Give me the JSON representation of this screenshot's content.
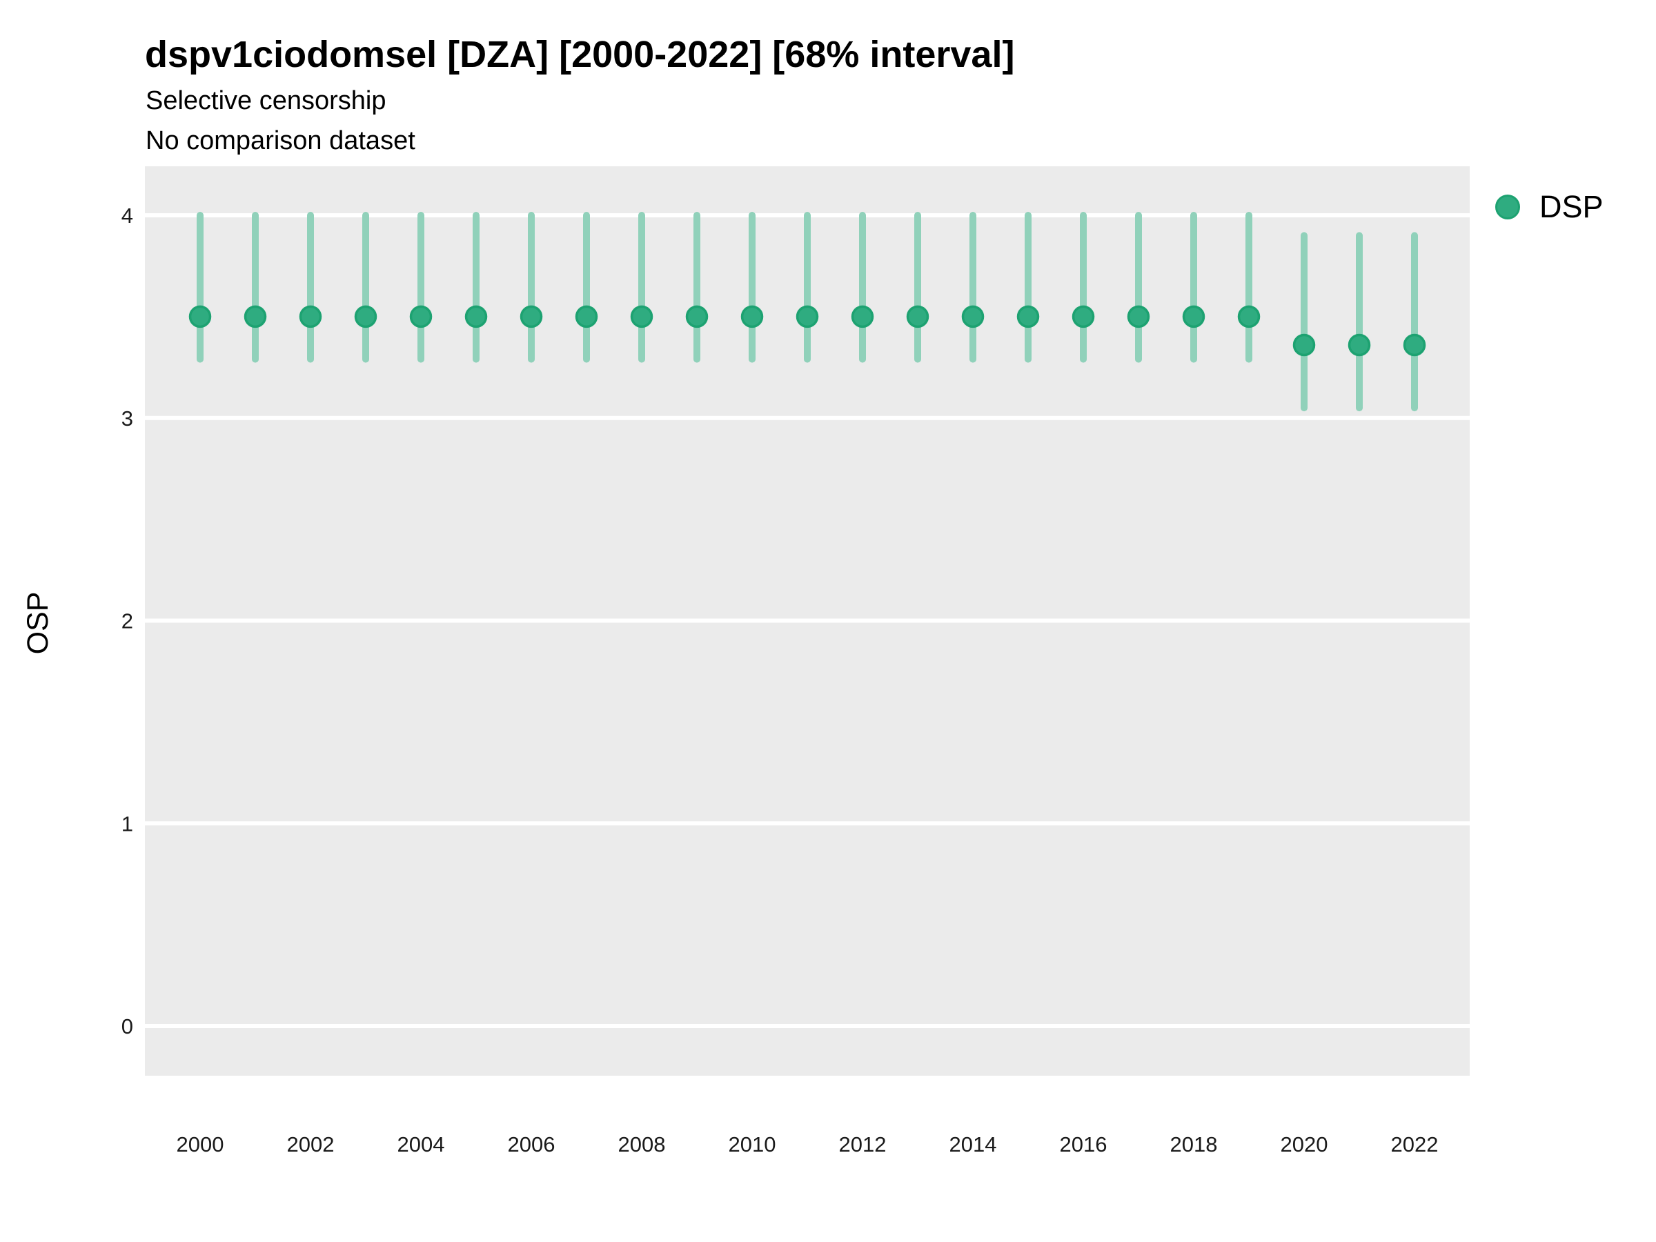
{
  "chart_data": {
    "type": "scatter",
    "subtype": "pointrange",
    "title": "dspv1ciodomsel [DZA] [2000-2022] [68% interval]",
    "subtitle_line1": "Selective censorship",
    "subtitle_line2": "No comparison dataset",
    "interval_label": "68% interval",
    "country_code": "DZA",
    "xlabel": "",
    "ylabel": "OSP",
    "ylim": [
      0,
      4
    ],
    "yticks": [
      0,
      1,
      2,
      3,
      4
    ],
    "xticks": [
      2000,
      2002,
      2004,
      2006,
      2008,
      2010,
      2012,
      2014,
      2016,
      2018,
      2020,
      2022
    ],
    "x_range_padded": [
      1999,
      2023
    ],
    "grid": "major horizontal white lines on gray panel",
    "legend_position": "right",
    "legend": {
      "entries": [
        {
          "label": "DSP",
          "marker": "circle",
          "marker_color": "#2fac80",
          "marker_stroke": "#1da271"
        }
      ]
    },
    "series": [
      {
        "name": "DSP",
        "points": [
          {
            "year": 2000,
            "mid": 3.5,
            "lo": 3.29,
            "hi": 4.0
          },
          {
            "year": 2001,
            "mid": 3.5,
            "lo": 3.29,
            "hi": 4.0
          },
          {
            "year": 2002,
            "mid": 3.5,
            "lo": 3.29,
            "hi": 4.0
          },
          {
            "year": 2003,
            "mid": 3.5,
            "lo": 3.29,
            "hi": 4.0
          },
          {
            "year": 2004,
            "mid": 3.5,
            "lo": 3.29,
            "hi": 4.0
          },
          {
            "year": 2005,
            "mid": 3.5,
            "lo": 3.29,
            "hi": 4.0
          },
          {
            "year": 2006,
            "mid": 3.5,
            "lo": 3.29,
            "hi": 4.0
          },
          {
            "year": 2007,
            "mid": 3.5,
            "lo": 3.29,
            "hi": 4.0
          },
          {
            "year": 2008,
            "mid": 3.5,
            "lo": 3.29,
            "hi": 4.0
          },
          {
            "year": 2009,
            "mid": 3.5,
            "lo": 3.29,
            "hi": 4.0
          },
          {
            "year": 2010,
            "mid": 3.5,
            "lo": 3.29,
            "hi": 4.0
          },
          {
            "year": 2011,
            "mid": 3.5,
            "lo": 3.29,
            "hi": 4.0
          },
          {
            "year": 2012,
            "mid": 3.5,
            "lo": 3.29,
            "hi": 4.0
          },
          {
            "year": 2013,
            "mid": 3.5,
            "lo": 3.29,
            "hi": 4.0
          },
          {
            "year": 2014,
            "mid": 3.5,
            "lo": 3.29,
            "hi": 4.0
          },
          {
            "year": 2015,
            "mid": 3.5,
            "lo": 3.29,
            "hi": 4.0
          },
          {
            "year": 2016,
            "mid": 3.5,
            "lo": 3.29,
            "hi": 4.0
          },
          {
            "year": 2017,
            "mid": 3.5,
            "lo": 3.29,
            "hi": 4.0
          },
          {
            "year": 2018,
            "mid": 3.5,
            "lo": 3.29,
            "hi": 4.0
          },
          {
            "year": 2019,
            "mid": 3.5,
            "lo": 3.29,
            "hi": 4.0
          },
          {
            "year": 2020,
            "mid": 3.36,
            "lo": 3.05,
            "hi": 3.9
          },
          {
            "year": 2021,
            "mid": 3.36,
            "lo": 3.05,
            "hi": 3.9
          },
          {
            "year": 2022,
            "mid": 3.36,
            "lo": 3.05,
            "hi": 3.9
          }
        ]
      }
    ],
    "colors": {
      "point_fill": "#2fac80",
      "point_stroke": "#1da271",
      "interval_bar": "#90d1ba",
      "panel_background": "#ebebeb",
      "grid_line": "#ffffff",
      "title_text": "#000000",
      "tick_text": "#1a1a1a"
    }
  }
}
